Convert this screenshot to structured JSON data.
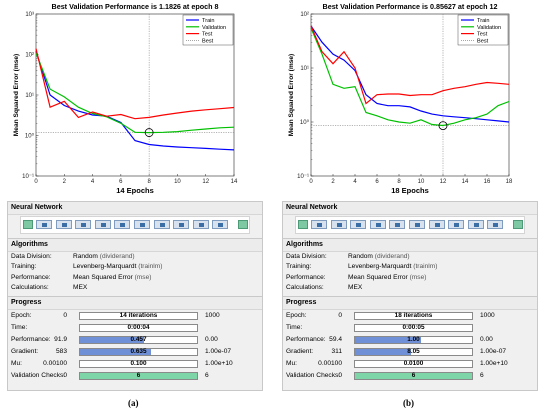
{
  "panels": [
    {
      "caption": "(a)",
      "chart_data": {
        "type": "line",
        "title": "Best Validation Performance is 1.1826 at epoch 8",
        "xlabel": "14 Epochs",
        "ylabel": "Mean Squared Error  (mse)",
        "yscale": "log",
        "xlim": [
          0,
          14
        ],
        "ylim": [
          0.1,
          1000
        ],
        "xticks": [
          0,
          2,
          4,
          6,
          8,
          10,
          12,
          14
        ],
        "yticks": [
          {
            "v": 0.1,
            "label": "10⁻¹"
          },
          {
            "v": 1,
            "label": "10⁰"
          },
          {
            "v": 10,
            "label": "10¹"
          },
          {
            "v": 100,
            "label": "10²"
          },
          {
            "v": 1000,
            "label": "10³"
          }
        ],
        "series": [
          {
            "name": "Train",
            "color": "#0000ff",
            "x": [
              0,
              1,
              2,
              3,
              4,
              5,
              6,
              7,
              8,
              9,
              10,
              11,
              12,
              13,
              14
            ],
            "y": [
              120,
              10,
              5.5,
              4.0,
              3.2,
              3.0,
              2.1,
              0.75,
              0.6,
              0.55,
              0.52,
              0.5,
              0.48,
              0.46,
              0.44
            ]
          },
          {
            "name": "Validation",
            "color": "#00c000",
            "x": [
              0,
              1,
              2,
              3,
              4,
              5,
              6,
              7,
              8,
              9,
              10,
              11,
              12,
              13,
              14
            ],
            "y": [
              110,
              14,
              9,
              5,
              3.5,
              2.9,
              2.0,
              1.2,
              1.18,
              1.2,
              1.25,
              1.35,
              1.45,
              1.55,
              1.6
            ]
          },
          {
            "name": "Test",
            "color": "#ff0000",
            "x": [
              0,
              1,
              2,
              3,
              4,
              5,
              6,
              7,
              8,
              9,
              10,
              11,
              12,
              13,
              14
            ],
            "y": [
              140,
              5,
              7,
              2.8,
              3.8,
              3.0,
              3.3,
              2.6,
              2.8,
              3.2,
              3.6,
              4.0,
              4.3,
              4.6,
              4.9
            ]
          }
        ],
        "best": {
          "name": "Best",
          "x": 8,
          "y": 1.1826,
          "color": "#888888"
        },
        "legend_position": "top-right"
      },
      "network_title": "Neural Network",
      "algorithms": {
        "title": "Algorithms",
        "rows": [
          {
            "label": "Data Division:",
            "value": "Random",
            "sub": "(dividerand)"
          },
          {
            "label": "Training:",
            "value": "Levenberg-Marquardt",
            "sub": "(trainlm)"
          },
          {
            "label": "Performance:",
            "value": "Mean Squared Error",
            "sub": "(mse)"
          },
          {
            "label": "Calculations:",
            "value": "MEX",
            "sub": ""
          }
        ]
      },
      "progress": {
        "title": "Progress",
        "rows": [
          {
            "label": "Epoch:",
            "min": "0",
            "bar": "14 iterations",
            "max": "1000",
            "fill": 0.0,
            "color": "#ffffff"
          },
          {
            "label": "Time:",
            "min": "",
            "bar": "0:00:04",
            "max": "",
            "fill": 0.0,
            "color": "#ffffff"
          },
          {
            "label": "Performance:",
            "min": "91.9",
            "bar": "0.457",
            "max": "0.00",
            "fill": 0.55,
            "color": "#6f8fd6"
          },
          {
            "label": "Gradient:",
            "min": "583",
            "bar": "0.635",
            "max": "1.00e-07",
            "fill": 0.61,
            "color": "#6f8fd6"
          },
          {
            "label": "Mu:",
            "min": "0.00100",
            "bar": "0.100",
            "max": "1.00e+10",
            "fill": 0.0,
            "color": "#ffffff"
          },
          {
            "label": "Validation Checks:",
            "min": "0",
            "bar": "6",
            "max": "6",
            "fill": 1.0,
            "color": "#7ed6a8"
          }
        ]
      }
    },
    {
      "caption": "(b)",
      "chart_data": {
        "type": "line",
        "title": "Best Validation Performance is 0.85627 at epoch 12",
        "xlabel": "18 Epochs",
        "ylabel": "Mean Squared Error  (mse)",
        "yscale": "log",
        "xlim": [
          0,
          18
        ],
        "ylim": [
          0.1,
          100
        ],
        "xticks": [
          0,
          2,
          4,
          6,
          8,
          10,
          12,
          14,
          16,
          18
        ],
        "yticks": [
          {
            "v": 0.1,
            "label": "10⁻¹"
          },
          {
            "v": 1,
            "label": "10⁰"
          },
          {
            "v": 10,
            "label": "10¹"
          },
          {
            "v": 100,
            "label": "10²"
          }
        ],
        "series": [
          {
            "name": "Train",
            "color": "#0000ff",
            "x": [
              0,
              1,
              2,
              3,
              4,
              5,
              6,
              7,
              8,
              9,
              10,
              11,
              12,
              13,
              14,
              15,
              16,
              17,
              18
            ],
            "y": [
              60,
              30,
              18,
              14,
              9,
              3.2,
              2.2,
              2.0,
              2.0,
              1.9,
              1.6,
              1.4,
              1.3,
              1.25,
              1.2,
              1.15,
              1.1,
              1.05,
              1.0
            ]
          },
          {
            "name": "Validation",
            "color": "#00c000",
            "x": [
              0,
              1,
              2,
              3,
              4,
              5,
              6,
              7,
              8,
              9,
              10,
              11,
              12,
              13,
              14,
              15,
              16,
              17,
              18
            ],
            "y": [
              55,
              18,
              5,
              4.2,
              4.5,
              1.5,
              1.3,
              1.1,
              1.0,
              0.95,
              1.1,
              0.9,
              0.86,
              0.95,
              1.1,
              1.2,
              1.4,
              2.0,
              2.4
            ]
          },
          {
            "name": "Test",
            "color": "#ff0000",
            "x": [
              0,
              1,
              2,
              3,
              4,
              5,
              6,
              7,
              8,
              9,
              10,
              11,
              12,
              13,
              14,
              15,
              16,
              17,
              18
            ],
            "y": [
              60,
              20,
              12,
              20,
              10,
              2.2,
              3.2,
              3.3,
              3.3,
              3.1,
              3.2,
              3.2,
              3.8,
              4.2,
              4.5,
              5.0,
              5.4,
              5.2,
              5.0
            ]
          }
        ],
        "best": {
          "name": "Best",
          "x": 12,
          "y": 0.85627,
          "color": "#888888"
        },
        "legend_position": "top-right"
      },
      "network_title": "Neural Network",
      "algorithms": {
        "title": "Algorithms",
        "rows": [
          {
            "label": "Data Division:",
            "value": "Random",
            "sub": "(dividerand)"
          },
          {
            "label": "Training:",
            "value": "Levenberg-Marquardt",
            "sub": "(trainlm)"
          },
          {
            "label": "Performance:",
            "value": "Mean Squared Error",
            "sub": "(mse)"
          },
          {
            "label": "Calculations:",
            "value": "MEX",
            "sub": ""
          }
        ]
      },
      "progress": {
        "title": "Progress",
        "rows": [
          {
            "label": "Epoch:",
            "min": "0",
            "bar": "18 iterations",
            "max": "1000",
            "fill": 0.0,
            "color": "#ffffff"
          },
          {
            "label": "Time:",
            "min": "",
            "bar": "0:00:05",
            "max": "",
            "fill": 0.0,
            "color": "#ffffff"
          },
          {
            "label": "Performance:",
            "min": "59.4",
            "bar": "1.00",
            "max": "0.00",
            "fill": 0.56,
            "color": "#6f8fd6"
          },
          {
            "label": "Gradient:",
            "min": "311",
            "bar": "8.05",
            "max": "1.00e-07",
            "fill": 0.48,
            "color": "#6f8fd6"
          },
          {
            "label": "Mu:",
            "min": "0.00100",
            "bar": "0.0100",
            "max": "1.00e+10",
            "fill": 0.0,
            "color": "#ffffff"
          },
          {
            "label": "Validation Checks:",
            "min": "0",
            "bar": "6",
            "max": "6",
            "fill": 1.0,
            "color": "#7ed6a8"
          }
        ]
      }
    }
  ]
}
